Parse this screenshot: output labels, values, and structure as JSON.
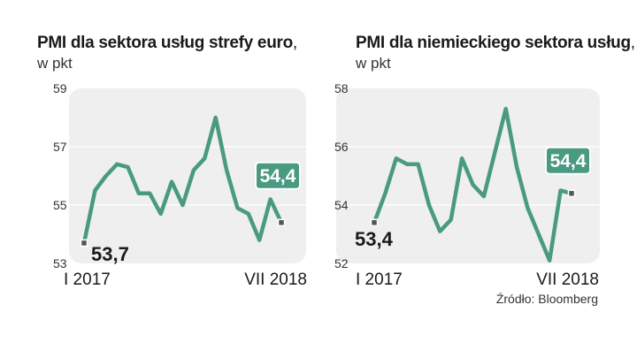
{
  "source": "Źródło: Bloomberg",
  "colors": {
    "line": "#4a9a82",
    "panel": "#efefef",
    "grid": "#ffffff",
    "marker": "#555555"
  },
  "chart_data": [
    {
      "type": "line",
      "title": "PMI dla sektora usług strefy euro",
      "title_suffix": ",",
      "unit": "w pkt",
      "x_start_label": "I 2017",
      "x_end_label": "VII 2018",
      "ylim": [
        53,
        59
      ],
      "yticks": [
        53,
        55,
        57,
        59
      ],
      "ytick_labels": [
        "53",
        "55",
        "57",
        "59"
      ],
      "values": [
        53.7,
        55.5,
        56.0,
        56.4,
        56.3,
        55.4,
        55.4,
        54.7,
        55.8,
        55.0,
        56.2,
        56.6,
        58.0,
        56.2,
        54.9,
        54.7,
        53.8,
        55.2,
        54.4
      ],
      "first_label": "53,7",
      "last_label": "54,4"
    },
    {
      "type": "line",
      "title": "PMI dla niemieckiego sektora usług",
      "title_suffix": ",",
      "unit": "w pkt",
      "x_start_label": "I 2017",
      "x_end_label": "VII 2018",
      "ylim": [
        52,
        58
      ],
      "yticks": [
        52,
        54,
        56,
        58
      ],
      "ytick_labels": [
        "52",
        "54",
        "56",
        "58"
      ],
      "values": [
        53.4,
        54.4,
        55.6,
        55.4,
        55.4,
        54.0,
        53.1,
        53.5,
        55.6,
        54.7,
        54.3,
        55.8,
        57.3,
        55.3,
        53.9,
        53.0,
        52.1,
        54.5,
        54.4
      ],
      "first_label": "53,4",
      "last_label": "54,4"
    }
  ]
}
